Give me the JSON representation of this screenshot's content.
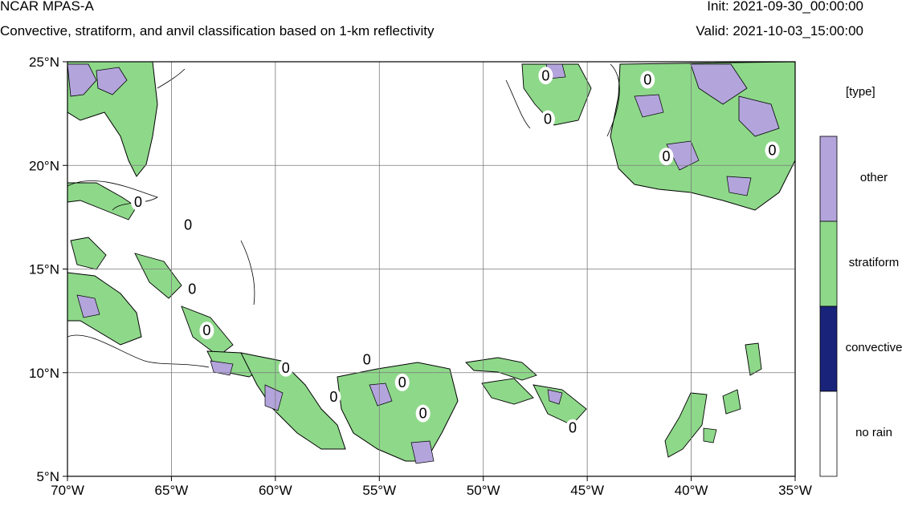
{
  "header": {
    "title": "NCAR MPAS-A",
    "subtitle": "Convective, stratiform, and anvil classification based on 1-km reflectivity",
    "init": "Init: 2021-09-30_00:00:00",
    "valid": "Valid: 2021-10-03_15:00:00"
  },
  "map": {
    "lon_range": [
      -70,
      -35
    ],
    "lat_range": [
      5,
      25
    ],
    "x_ticks": [
      {
        "value": -70,
        "label": "70°W"
      },
      {
        "value": -65,
        "label": "65°W"
      },
      {
        "value": -60,
        "label": "60°W"
      },
      {
        "value": -55,
        "label": "55°W"
      },
      {
        "value": -50,
        "label": "50°W"
      },
      {
        "value": -45,
        "label": "45°W"
      },
      {
        "value": -40,
        "label": "40°W"
      },
      {
        "value": -35,
        "label": "35°W"
      }
    ],
    "y_ticks": [
      {
        "value": 25,
        "label": "25°N"
      },
      {
        "value": 20,
        "label": "20°N"
      },
      {
        "value": 15,
        "label": "15°N"
      },
      {
        "value": 10,
        "label": "10°N"
      },
      {
        "value": 5,
        "label": "5°N"
      }
    ],
    "gridlines": true,
    "contour_labels": [
      {
        "lon": -66.6,
        "lat": 18.0,
        "text": "0"
      },
      {
        "lon": -64.0,
        "lat": 13.8,
        "text": "0"
      },
      {
        "lon": -63.3,
        "lat": 11.8,
        "text": "0"
      },
      {
        "lon": -64.2,
        "lat": 16.9,
        "text": "0"
      },
      {
        "lon": -59.5,
        "lat": 10.0,
        "text": "0"
      },
      {
        "lon": -55.6,
        "lat": 10.4,
        "text": "0"
      },
      {
        "lon": -57.2,
        "lat": 8.6,
        "text": "0"
      },
      {
        "lon": -53.9,
        "lat": 9.3,
        "text": "0"
      },
      {
        "lon": -52.9,
        "lat": 7.8,
        "text": "0"
      },
      {
        "lon": -45.7,
        "lat": 7.1,
        "text": "0"
      },
      {
        "lon": -47.0,
        "lat": 24.1,
        "text": "0"
      },
      {
        "lon": -46.9,
        "lat": 22.0,
        "text": "0"
      },
      {
        "lon": -42.1,
        "lat": 23.9,
        "text": "0"
      },
      {
        "lon": -41.2,
        "lat": 20.2,
        "text": "0"
      },
      {
        "lon": -36.1,
        "lat": 20.5,
        "text": "0"
      }
    ],
    "colors": {
      "other": "#b3a4dc",
      "stratiform": "#8ed88a",
      "convective": "#1a237a",
      "no_rain": "#ffffff"
    }
  },
  "legend": {
    "title": "[type]",
    "categories": [
      {
        "label": "other",
        "color": "#b3a4dc"
      },
      {
        "label": "stratiform",
        "color": "#8ed88a"
      },
      {
        "label": "convective",
        "color": "#1a237a"
      },
      {
        "label": "no rain",
        "color": "#ffffff"
      }
    ]
  }
}
